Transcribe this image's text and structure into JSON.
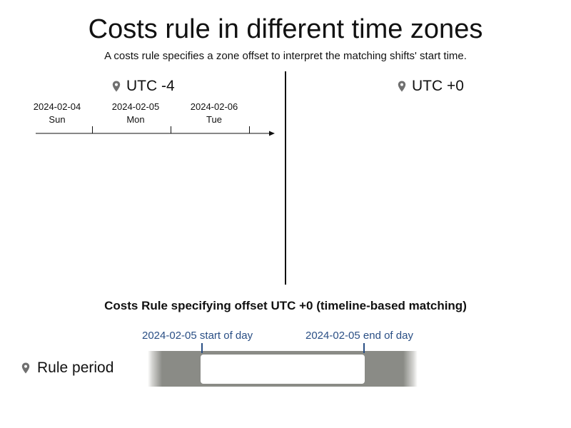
{
  "header": {
    "title": "Costs rule in different time zones",
    "subtitle": "A costs rule specifies a zone offset to interpret the matching shifts' start time."
  },
  "zones": {
    "left": {
      "label": "UTC -4",
      "icon": "location-pin-icon"
    },
    "right": {
      "label": "UTC +0",
      "icon": "location-pin-icon"
    }
  },
  "timeline_left": {
    "days": [
      {
        "date": "2024-02-04",
        "weekday": "Sun"
      },
      {
        "date": "2024-02-05",
        "weekday": "Mon"
      },
      {
        "date": "2024-02-06",
        "weekday": "Tue"
      }
    ]
  },
  "rule_section": {
    "title": "Costs Rule specifying offset UTC +0 (timeline-based matching)",
    "start_label": "2024-02-05 start of day",
    "end_label": "2024-02-05 end of day",
    "period_label": "Rule period",
    "period_icon": "location-pin-icon"
  },
  "colors": {
    "text": "#111111",
    "marker": "#2a4f85",
    "period_bar": "#8a8b86"
  }
}
